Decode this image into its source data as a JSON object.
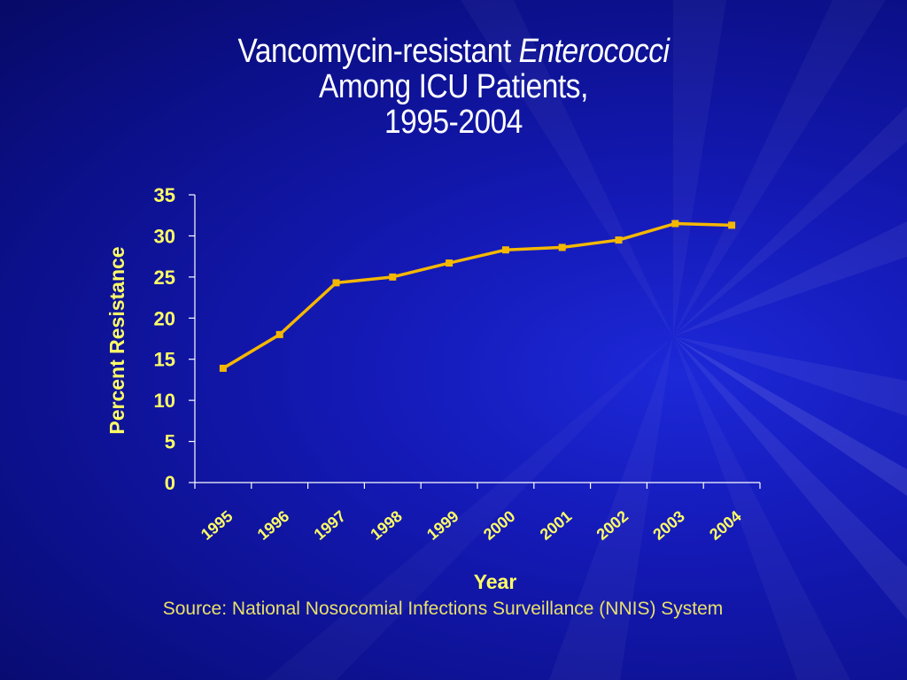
{
  "slide": {
    "title_line1_prefix": "Vancomycin-resistant ",
    "title_line1_italic": "Enterococci",
    "title_line2": "Among ICU Patients,",
    "title_line3": "1995-2004",
    "source": "Source: National Nosocomial Infections Surveillance (NNIS) System"
  },
  "colors": {
    "background": "#1419b4",
    "title_text": "#ffffff",
    "axis_text": "#ffff66",
    "line": "#f5b800",
    "marker": "#f5b800",
    "axis": "#ffffff",
    "source_text": "#e8e06a"
  },
  "chart_data": {
    "type": "line",
    "title": "Vancomycin-resistant Enterococci Among ICU Patients, 1995-2004",
    "xlabel": "Year",
    "ylabel": "Percent Resistance",
    "categories": [
      "1995",
      "1996",
      "1997",
      "1998",
      "1999",
      "2000",
      "2001",
      "2002",
      "2003",
      "2004"
    ],
    "series": [
      {
        "values": [
          13.9,
          18.0,
          24.3,
          25.0,
          26.7,
          28.3,
          28.6,
          29.5,
          31.5,
          31.3
        ]
      }
    ],
    "ylim": [
      0,
      35
    ],
    "yticks": [
      0,
      5,
      10,
      15,
      20,
      25,
      30,
      35
    ],
    "grid": false,
    "legend": "none"
  }
}
